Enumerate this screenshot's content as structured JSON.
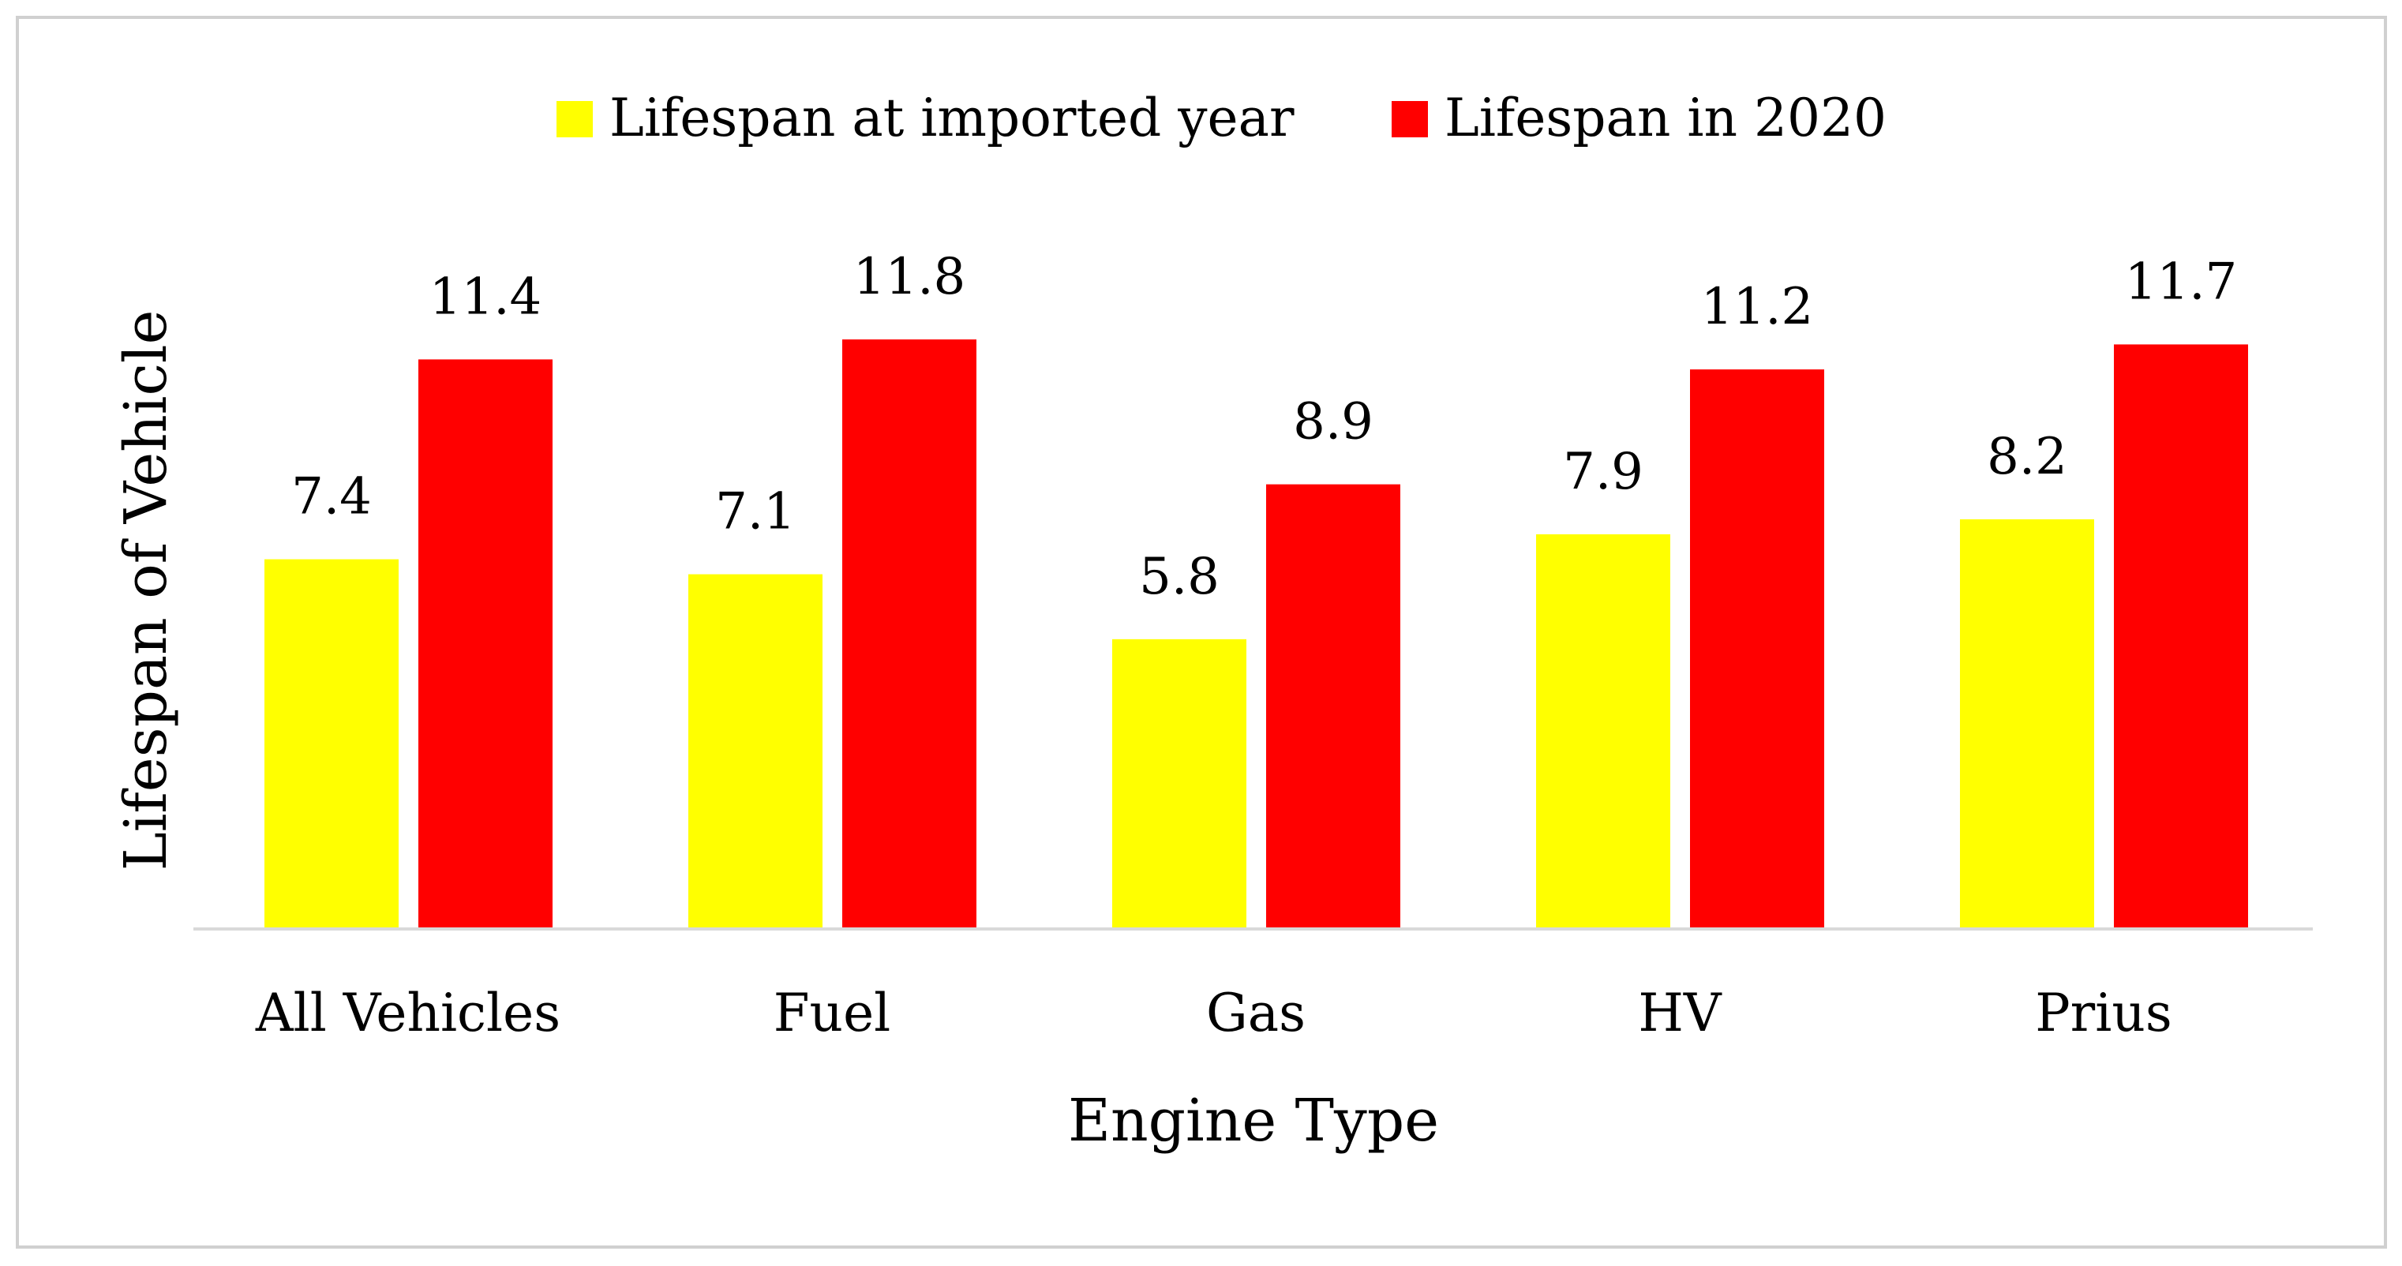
{
  "chart_data": {
    "type": "bar",
    "categories": [
      "All Vehicles",
      "Fuel",
      "Gas",
      "HV",
      "Prius"
    ],
    "series": [
      {
        "name": "Lifespan at imported year",
        "color": "#ffff00",
        "values": [
          7.4,
          7.1,
          5.8,
          7.9,
          8.2
        ]
      },
      {
        "name": "Lifespan in 2020",
        "color": "#ff0000",
        "values": [
          11.4,
          11.8,
          8.9,
          11.2,
          11.7
        ]
      }
    ],
    "value_labels": {
      "series0": [
        "7.4",
        "7.1",
        "5.8",
        "7.9",
        "8.2"
      ],
      "series1": [
        "11.4",
        "11.8",
        "8.9",
        "11.2",
        "11.7"
      ]
    },
    "xlabel": "Engine Type",
    "ylabel": "Lifespan of Vehicle",
    "ylim": [
      0,
      14
    ],
    "grid": false,
    "legend_position": "top-center",
    "axis_color": "#d9d9d9",
    "frame_color": "#d0d0d0"
  }
}
